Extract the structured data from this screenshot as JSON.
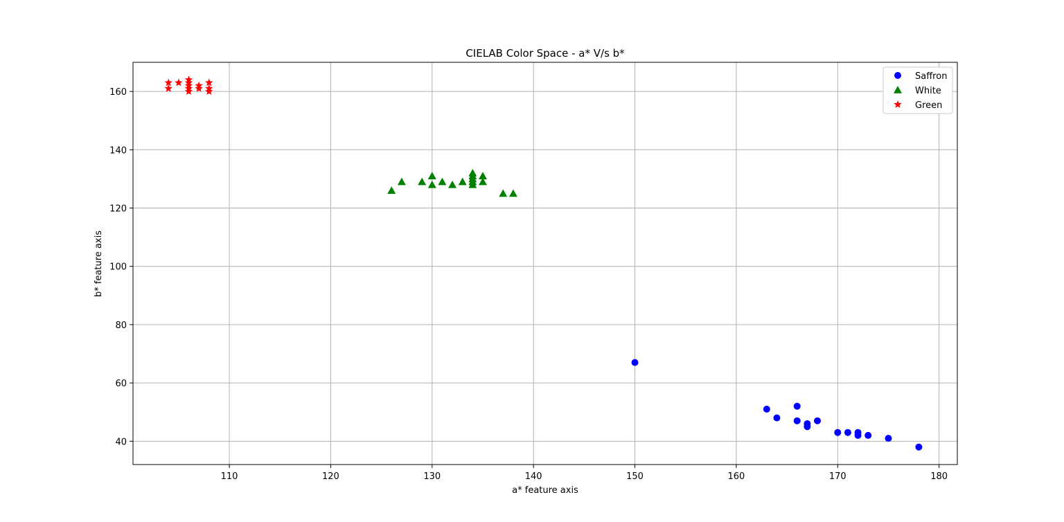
{
  "chart_data": {
    "type": "scatter",
    "title": "CIELAB Color Space - a* V/s b*",
    "xlabel": "a* feature axis",
    "ylabel": "b* feature axis",
    "xlim": [
      100.5,
      181.8
    ],
    "ylim": [
      32,
      170
    ],
    "xticks": [
      110,
      120,
      130,
      140,
      150,
      160,
      170,
      180
    ],
    "yticks": [
      40,
      60,
      80,
      100,
      120,
      140,
      160
    ],
    "grid": true,
    "legend_position": "top-right",
    "series": [
      {
        "name": "Saffron",
        "color": "#0000ff",
        "marker": "circle",
        "points": [
          [
            150,
            67
          ],
          [
            163,
            51
          ],
          [
            164,
            48
          ],
          [
            166,
            52
          ],
          [
            166,
            47
          ],
          [
            167,
            46
          ],
          [
            167,
            45
          ],
          [
            168,
            47
          ],
          [
            170,
            43
          ],
          [
            171,
            43
          ],
          [
            172,
            43
          ],
          [
            172,
            42
          ],
          [
            173,
            42
          ],
          [
            175,
            41
          ],
          [
            178,
            38
          ]
        ]
      },
      {
        "name": "White",
        "color": "#008000",
        "marker": "triangle",
        "points": [
          [
            126,
            126
          ],
          [
            127,
            129
          ],
          [
            129,
            129
          ],
          [
            130,
            131
          ],
          [
            130,
            128
          ],
          [
            131,
            129
          ],
          [
            132,
            128
          ],
          [
            133,
            129
          ],
          [
            134,
            132
          ],
          [
            134,
            131
          ],
          [
            134,
            130
          ],
          [
            134,
            129
          ],
          [
            134,
            128
          ],
          [
            135,
            131
          ],
          [
            135,
            129
          ],
          [
            137,
            125
          ],
          [
            138,
            125
          ]
        ]
      },
      {
        "name": "Green",
        "color": "#ff0000",
        "marker": "star",
        "points": [
          [
            104,
            163
          ],
          [
            104,
            161
          ],
          [
            105,
            163
          ],
          [
            106,
            164
          ],
          [
            106,
            163
          ],
          [
            106,
            162
          ],
          [
            106,
            161
          ],
          [
            106,
            160
          ],
          [
            107,
            162
          ],
          [
            107,
            161
          ],
          [
            108,
            163
          ],
          [
            108,
            161
          ],
          [
            108,
            160
          ]
        ]
      }
    ]
  }
}
